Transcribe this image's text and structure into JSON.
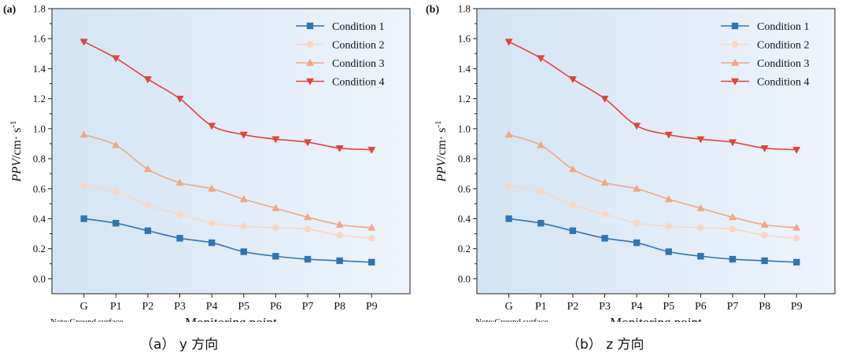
{
  "figure": {
    "captions": [
      "（a） y 方向",
      "（b） z 方向"
    ]
  },
  "chart_data": [
    {
      "type": "line",
      "panel_label": "(a)",
      "categories": [
        "G",
        "P1",
        "P2",
        "P3",
        "P4",
        "P5",
        "P6",
        "P7",
        "P8",
        "P9"
      ],
      "xlabel": "Monitoring point",
      "ylabel": "PPV/cm· s⁻¹",
      "ylabel_parts": {
        "italic": "PPV",
        "unit": "/cm· s",
        "sup": "-1"
      },
      "note": "Note:Ground surface",
      "ylim": [
        -0.1,
        1.8
      ],
      "yticks": [
        0.0,
        0.2,
        0.4,
        0.6,
        0.8,
        1.0,
        1.2,
        1.4,
        1.6,
        1.8
      ],
      "grid": false,
      "legend_position": "top-right",
      "background": "gradient light blue",
      "series": [
        {
          "name": "Condition 1",
          "color": "#2e75b6",
          "marker": "square",
          "values": [
            0.4,
            0.37,
            0.32,
            0.27,
            0.24,
            0.18,
            0.15,
            0.13,
            0.12,
            0.11
          ]
        },
        {
          "name": "Condition 2",
          "color": "#fbd5c2",
          "marker": "circle",
          "values": [
            0.62,
            0.58,
            0.49,
            0.43,
            0.37,
            0.35,
            0.34,
            0.33,
            0.29,
            0.27
          ]
        },
        {
          "name": "Condition 3",
          "color": "#f4a582",
          "marker": "triangle-up",
          "values": [
            0.96,
            0.89,
            0.73,
            0.64,
            0.6,
            0.53,
            0.47,
            0.41,
            0.36,
            0.34
          ]
        },
        {
          "name": "Condition 4",
          "color": "#e6413a",
          "marker": "triangle-down",
          "values": [
            1.58,
            1.47,
            1.33,
            1.2,
            1.02,
            0.96,
            0.93,
            0.91,
            0.87,
            0.86
          ]
        }
      ]
    },
    {
      "type": "line",
      "panel_label": "(b)",
      "categories": [
        "G",
        "P1",
        "P2",
        "P3",
        "P4",
        "P5",
        "P6",
        "P7",
        "P8",
        "P9"
      ],
      "xlabel": "Monitoring point",
      "ylabel": "PPV/cm· s⁻¹",
      "ylabel_parts": {
        "italic": "PPV",
        "unit": "/cm· s",
        "sup": "-1"
      },
      "note": "Note:Ground surface",
      "ylim": [
        -0.1,
        1.8
      ],
      "yticks": [
        0.0,
        0.2,
        0.4,
        0.6,
        0.8,
        1.0,
        1.2,
        1.4,
        1.6,
        1.8
      ],
      "grid": false,
      "legend_position": "top-right",
      "background": "gradient light blue",
      "series": [
        {
          "name": "Condition 1",
          "color": "#2e75b6",
          "marker": "square",
          "values": [
            0.4,
            0.37,
            0.32,
            0.27,
            0.24,
            0.18,
            0.15,
            0.13,
            0.12,
            0.11
          ]
        },
        {
          "name": "Condition 2",
          "color": "#fbd5c2",
          "marker": "circle",
          "values": [
            0.62,
            0.58,
            0.49,
            0.43,
            0.37,
            0.35,
            0.34,
            0.33,
            0.29,
            0.27
          ]
        },
        {
          "name": "Condition 3",
          "color": "#f4a582",
          "marker": "triangle-up",
          "values": [
            0.96,
            0.89,
            0.73,
            0.64,
            0.6,
            0.53,
            0.47,
            0.41,
            0.36,
            0.34
          ]
        },
        {
          "name": "Condition 4",
          "color": "#e6413a",
          "marker": "triangle-down",
          "values": [
            1.58,
            1.47,
            1.33,
            1.2,
            1.02,
            0.96,
            0.93,
            0.91,
            0.87,
            0.86
          ]
        }
      ]
    }
  ]
}
